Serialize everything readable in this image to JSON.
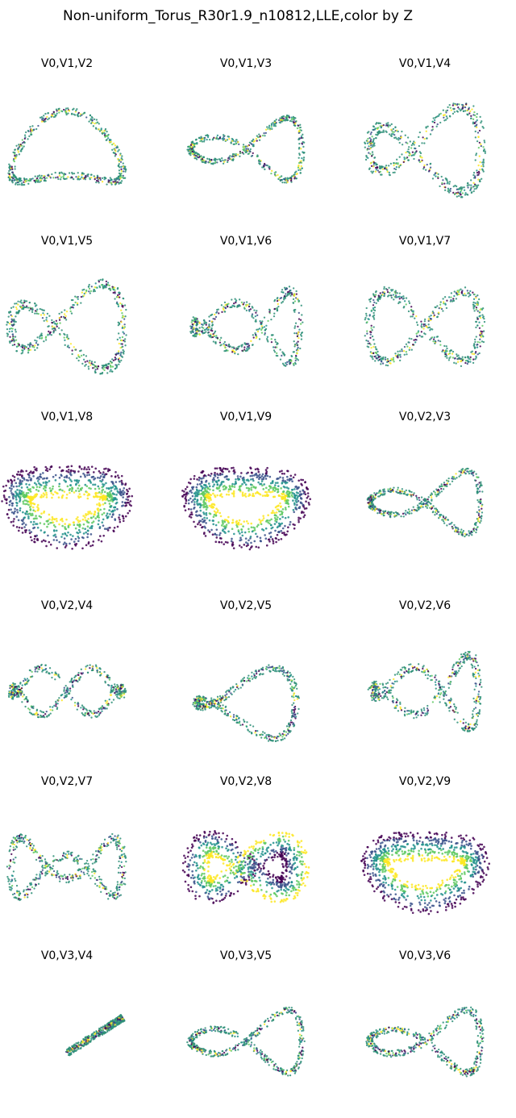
{
  "figure": {
    "title": "Non-uniform_Torus_R30r1.9_n10812,LLE,color by Z"
  },
  "chart_data": [
    {
      "type": "scatter",
      "title": "V0,V1,V2",
      "shape": "arch",
      "thick": 0.12,
      "band": false
    },
    {
      "type": "scatter",
      "title": "V0,V1,V3",
      "shape": "fig8",
      "thick": 0.1,
      "band": false
    },
    {
      "type": "scatter",
      "title": "V0,V1,V4",
      "shape": "dwave",
      "thick": 0.18,
      "band": false
    },
    {
      "type": "scatter",
      "title": "V0,V1,V5",
      "shape": "dwave",
      "thick": 0.16,
      "band": false
    },
    {
      "type": "scatter",
      "title": "V0,V1,V6",
      "shape": "twohump",
      "thick": 0.14,
      "band": false
    },
    {
      "type": "scatter",
      "title": "V0,V1,V7",
      "shape": "cross",
      "thick": 0.16,
      "band": false
    },
    {
      "type": "scatter",
      "title": "V0,V1,V8",
      "shape": "ring",
      "thick": 0.55,
      "band": true
    },
    {
      "type": "scatter",
      "title": "V0,V1,V9",
      "shape": "ring",
      "thick": 0.5,
      "band": true
    },
    {
      "type": "scatter",
      "title": "V0,V2,V3",
      "shape": "fig8",
      "thick": 0.1,
      "band": false
    },
    {
      "type": "scatter",
      "title": "V0,V2,V4",
      "shape": "zig",
      "thick": 0.12,
      "band": false
    },
    {
      "type": "scatter",
      "title": "V0,V2,V5",
      "shape": "vshape",
      "thick": 0.12,
      "band": false
    },
    {
      "type": "scatter",
      "title": "V0,V2,V6",
      "shape": "twohump",
      "thick": 0.14,
      "band": false
    },
    {
      "type": "scatter",
      "title": "V0,V2,V7",
      "shape": "wave3",
      "thick": 0.14,
      "band": false
    },
    {
      "type": "scatter",
      "title": "V0,V2,V8",
      "shape": "fig8band",
      "thick": 0.45,
      "band": true
    },
    {
      "type": "scatter",
      "title": "V0,V2,V9",
      "shape": "ring",
      "thick": 0.5,
      "band": true
    },
    {
      "type": "scatter",
      "title": "V0,V3,V4",
      "shape": "arc",
      "thick": 0.12,
      "band": false
    },
    {
      "type": "scatter",
      "title": "V0,V3,V5",
      "shape": "fig8",
      "thick": 0.1,
      "band": false
    },
    {
      "type": "scatter",
      "title": "V0,V3,V6",
      "shape": "fig8",
      "thick": 0.12,
      "band": false
    }
  ],
  "colors": {
    "viridis": [
      "#440154",
      "#3b528b",
      "#21918c",
      "#5ec962",
      "#fde725"
    ],
    "edge": "#2e8f78"
  }
}
